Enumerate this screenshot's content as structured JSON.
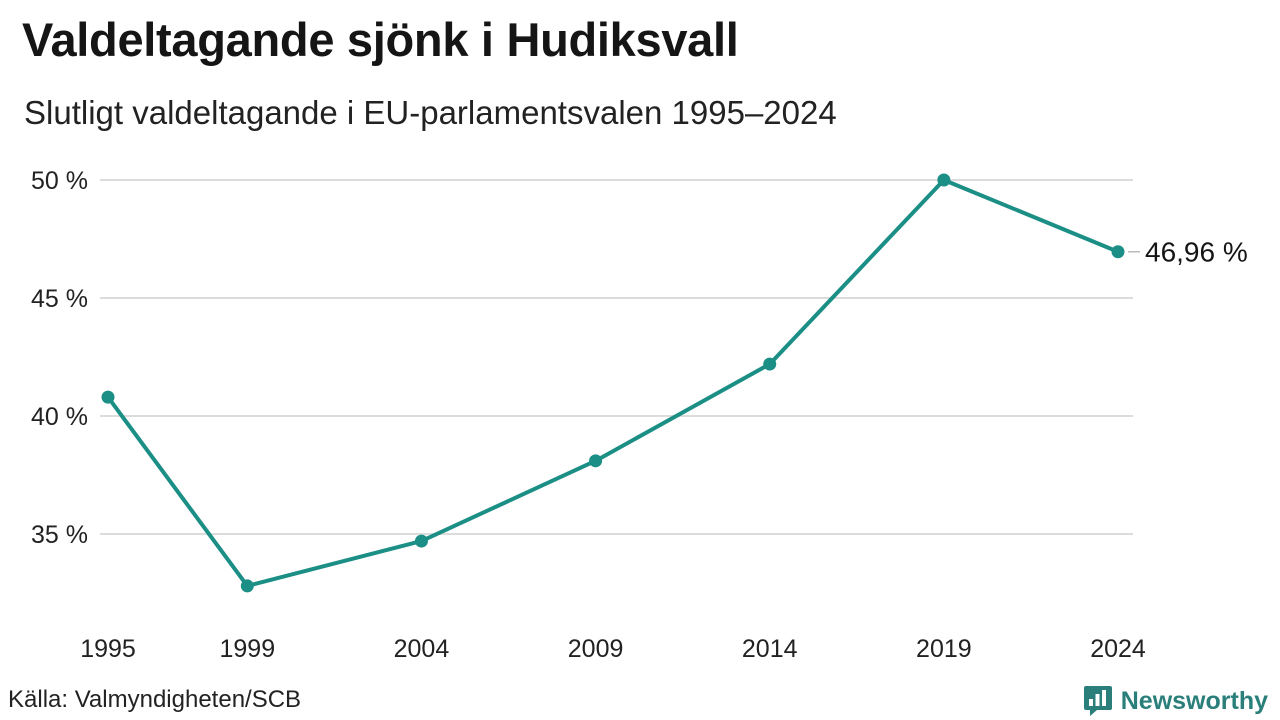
{
  "header": {
    "title": "Valdeltagande sjönk i Hudiksvall",
    "subtitle": "Slutligt valdeltagande i EU-parlamentsvalen 1995–2024"
  },
  "footer": {
    "source": "Källa: Valmyndigheten/SCB",
    "brand": "Newsworthy"
  },
  "colors": {
    "line": "#1b8f85",
    "grid": "#dcdcdc",
    "brand": "#2a7f7a"
  },
  "chart_data": {
    "type": "line",
    "x": [
      1995,
      1999,
      2004,
      2009,
      2014,
      2019,
      2024
    ],
    "x_tick_labels": [
      "1995",
      "1999",
      "2004",
      "2009",
      "2014",
      "2019",
      "2024"
    ],
    "series": [
      {
        "values": [
          40.8,
          32.8,
          34.7,
          38.1,
          42.2,
          50.0,
          46.96
        ]
      }
    ],
    "y_ticks": [
      35,
      40,
      45,
      50
    ],
    "y_tick_labels": [
      "35 %",
      "40 %",
      "45 %",
      "50 %"
    ],
    "ylim": [
      30.5,
      50
    ],
    "grid": true,
    "annotations": [
      {
        "x": 2024,
        "y": 46.96,
        "text": "46,96 %"
      }
    ]
  }
}
